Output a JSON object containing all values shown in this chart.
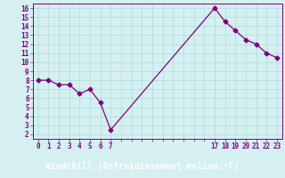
{
  "x": [
    0,
    1,
    2,
    3,
    4,
    5,
    6,
    7,
    17,
    18,
    19,
    20,
    21,
    22,
    23
  ],
  "y": [
    8.0,
    8.0,
    7.5,
    7.5,
    6.5,
    7.0,
    5.5,
    2.5,
    16.0,
    14.5,
    13.5,
    12.5,
    12.0,
    11.0,
    10.5
  ],
  "xlim_min": -0.5,
  "xlim_max": 23.5,
  "ylim_min": 1.5,
  "ylim_max": 16.5,
  "xticks_all": [
    0,
    1,
    2,
    3,
    4,
    5,
    6,
    7,
    8,
    9,
    10,
    11,
    12,
    13,
    14,
    15,
    16,
    17,
    18,
    19,
    20,
    21,
    22,
    23
  ],
  "xtick_labels": [
    "0",
    "1",
    "2",
    "3",
    "4",
    "5",
    "6",
    "7",
    "",
    "",
    "",
    "",
    "",
    "",
    "",
    "",
    "",
    "17",
    "18",
    "19",
    "20",
    "21",
    "22",
    "23"
  ],
  "yticks": [
    2,
    3,
    4,
    5,
    6,
    7,
    8,
    9,
    10,
    11,
    12,
    13,
    14,
    15,
    16
  ],
  "xlabel": "Windchill (Refroidissement éolien,°C)",
  "line_color": "#800080",
  "marker": "D",
  "marker_size": 2.5,
  "bg_color": "#d4f0f0",
  "grid_color": "#b8dede",
  "xlabel_bg": "#800080",
  "xlabel_fg": "#ffffff"
}
